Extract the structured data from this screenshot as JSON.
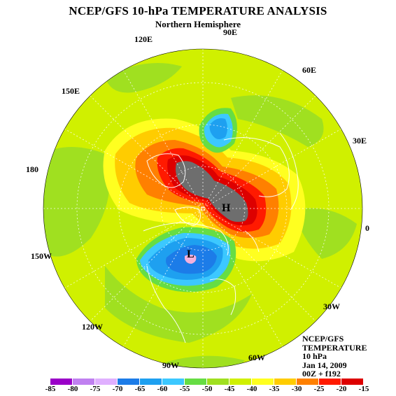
{
  "title": "NCEP/GFS 10-hPa TEMPERATURE ANALYSIS",
  "subtitle": "Northern Hemisphere",
  "info": {
    "line1": "NCEP/GFS",
    "line2": "TEMPERATURE",
    "line3": "10 hPa",
    "line4": "Jan 14, 2009",
    "line5": "00Z + f192"
  },
  "longitude_labels": {
    "lon_90e": "90E",
    "lon_120e": "120E",
    "lon_60e": "60E",
    "lon_150e": "150E",
    "lon_30e": "30E",
    "lon_180": "180",
    "lon_0": "0",
    "lon_150w": "150W",
    "lon_30w": "30W",
    "lon_120w": "120W",
    "lon_60w": "60W",
    "lon_90w": "90W"
  },
  "pressure_centers": {
    "high": "H",
    "low": "L"
  },
  "colorbar": {
    "levels": [
      "-85",
      "-80",
      "-75",
      "-70",
      "-65",
      "-60",
      "-55",
      "-50",
      "-45",
      "-40",
      "-35",
      "-30",
      "-25",
      "-20",
      "-15"
    ],
    "colors": [
      "#9a00c8",
      "#c080f0",
      "#e0b0ff",
      "#1c7ce8",
      "#1ea0f0",
      "#3cc8ff",
      "#66dd44",
      "#a0e020",
      "#d0f000",
      "#ffff20",
      "#ffcc00",
      "#ff8000",
      "#ff1a00",
      "#dd0000"
    ]
  },
  "colors": {
    "cold_center": "#f4b0dc",
    "warm_core": "#6e6e6e"
  }
}
